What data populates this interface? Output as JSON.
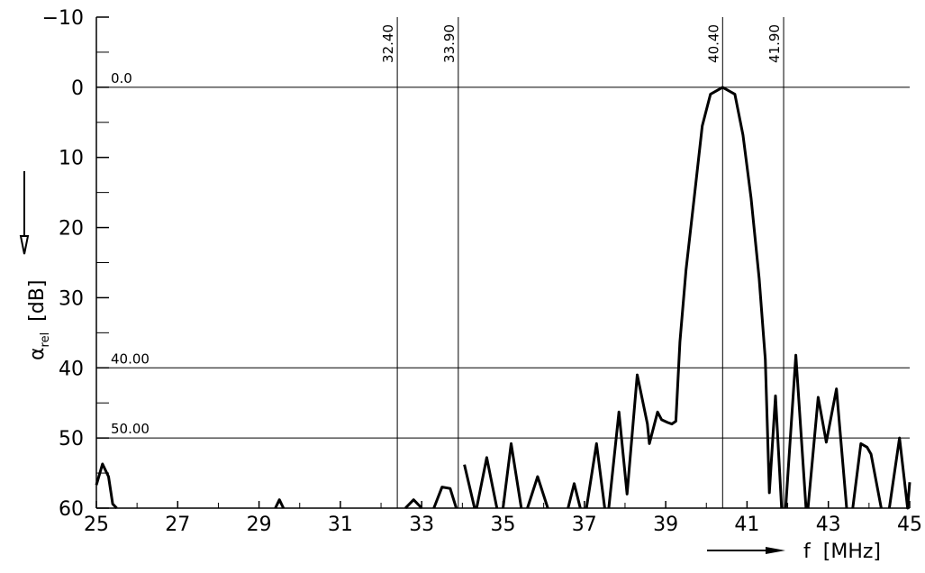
{
  "chart_data": {
    "type": "line",
    "ylabel": "α",
    "ylabel_sub": "rel",
    "ylabel_unit": "[dB]",
    "xlabel": "f",
    "xlabel_unit": "[MHz]",
    "xlim": [
      25,
      45
    ],
    "xticks": [
      25,
      27,
      29,
      31,
      33,
      35,
      37,
      39,
      41,
      43,
      45
    ],
    "xminorticks": [
      26,
      28,
      30,
      32,
      34,
      36,
      38,
      40,
      42,
      44
    ],
    "ylim": [
      -10,
      60
    ],
    "yinverted": true,
    "yticks": [
      {
        "value": -10,
        "label": "−10"
      },
      0,
      10,
      20,
      30,
      40,
      50,
      60
    ],
    "yminorticks": [
      -5,
      5,
      15,
      25,
      35,
      45,
      55
    ],
    "hlines": [
      {
        "value": 0,
        "label": "0.0"
      },
      {
        "value": 40,
        "label": "40.00"
      },
      {
        "value": 50,
        "label": "50.00"
      }
    ],
    "vlines": [
      {
        "value": 32.4,
        "label": "32.40"
      },
      {
        "value": 33.9,
        "label": "33.90"
      },
      {
        "value": 40.4,
        "label": "40.40"
      },
      {
        "value": 41.9,
        "label": "41.90"
      }
    ],
    "color": "#000000",
    "x": [
      25,
      25.15,
      25.3,
      25.4,
      25.5,
      27,
      29.4,
      29.5,
      29.6,
      31,
      32.6,
      32.8,
      33.0,
      33.15,
      33.3,
      33.5,
      33.7,
      33.85,
      33.8,
      34.05,
      34.3,
      34.33,
      34.35,
      34.6,
      34.85,
      34.9,
      35.0,
      35.2,
      35.45,
      35.5,
      35.6,
      35.85,
      36.1,
      36.3,
      36.6,
      36.75,
      36.9,
      36.95,
      37.05,
      37.3,
      37.5,
      37.55,
      37.6,
      37.85,
      38.05,
      38.3,
      38.55,
      38.6,
      38.8,
      38.9,
      39.05,
      39.15,
      39.25,
      39.35,
      39.5,
      39.7,
      39.9,
      40.1,
      40.4,
      40.7,
      40.9,
      41.1,
      41.3,
      41.45,
      41.55,
      41.7,
      41.85,
      41.9,
      41.95,
      42.2,
      42.45,
      42.5,
      42.5,
      42.75,
      42.95,
      43.2,
      43.45,
      43.5,
      43.6,
      43.8,
      43.95,
      44.05,
      44.3,
      44.4,
      44.5,
      44.75,
      44.95,
      45
    ],
    "values": [
      56.7,
      53.7,
      55.5,
      59.4,
      60,
      null,
      60,
      58.8,
      60,
      null,
      60,
      58.8,
      60,
      null,
      60,
      57,
      57.2,
      60,
      null,
      53.8,
      60,
      null,
      60,
      52.8,
      60,
      null,
      60,
      50.8,
      60,
      null,
      60,
      55.5,
      60,
      null,
      60,
      56.5,
      60,
      null,
      60,
      50.8,
      60,
      null,
      60,
      46.3,
      58,
      41,
      48,
      50.8,
      46.3,
      47.4,
      47.8,
      48,
      47.6,
      36.3,
      26,
      15.8,
      5.5,
      1,
      0,
      1,
      6.8,
      15.8,
      27.3,
      38.8,
      57.8,
      44,
      60,
      null,
      60,
      38.2,
      60,
      null,
      60,
      44.2,
      50.6,
      43,
      60,
      null,
      60,
      50.8,
      51.3,
      52.3,
      60,
      null,
      60,
      50,
      60,
      56.3
    ]
  }
}
